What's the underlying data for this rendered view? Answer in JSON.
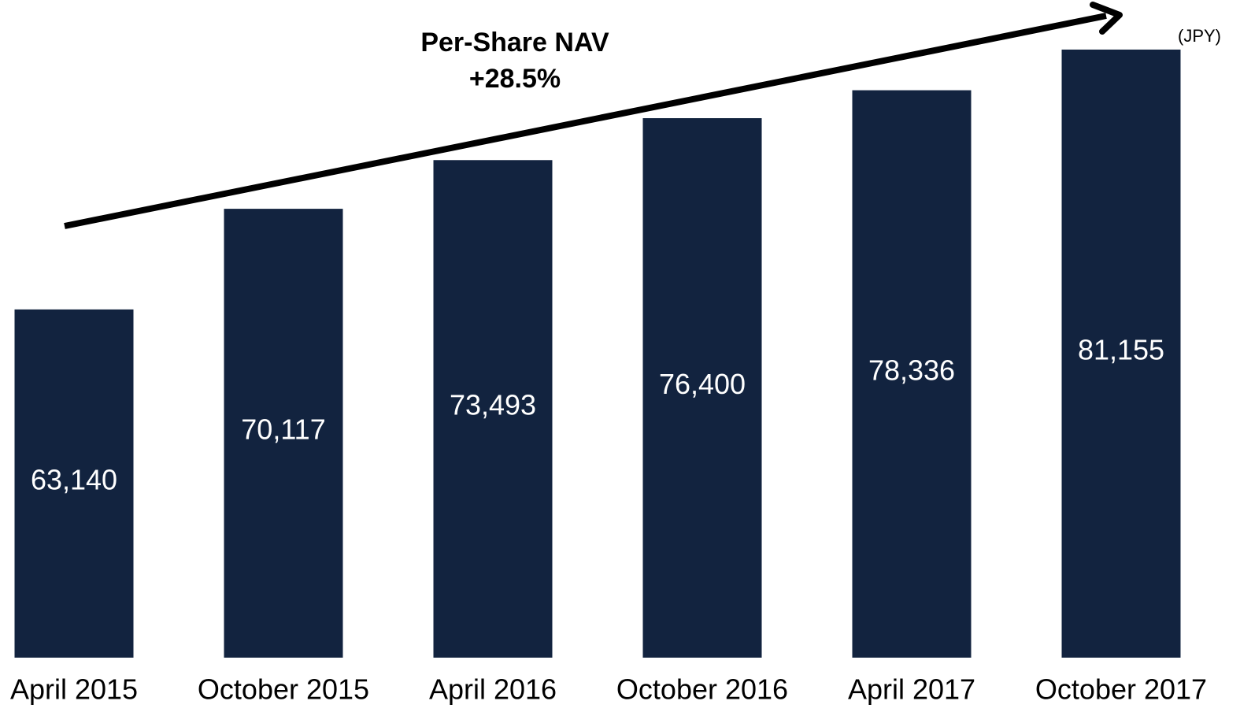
{
  "chart_data": {
    "type": "bar",
    "annotations": [
      "Per-Share NAV",
      "+28.5%"
    ],
    "unit_label": "(JPY)",
    "categories": [
      "April 2015",
      "October 2015",
      "April 2016",
      "October 2016",
      "April 2017",
      "October 2017"
    ],
    "values": [
      63140,
      70117,
      73493,
      76400,
      78336,
      81155
    ],
    "value_labels": [
      "63,140",
      "70,117",
      "73,493",
      "76,400",
      "78,336",
      "81,155"
    ],
    "color": "#12233f",
    "ylim": [
      39000,
      83500
    ]
  }
}
